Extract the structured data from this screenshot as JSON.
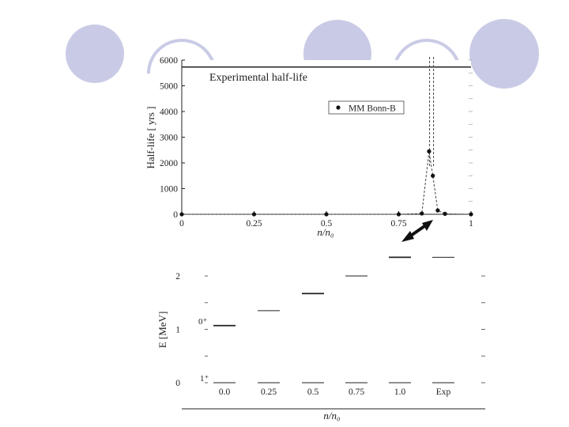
{
  "theme": {
    "circle_fill": "#c9cbe6",
    "ring_stroke": "#c9cbe6",
    "ink": "#222222",
    "grid": "#999999"
  },
  "chart_data": [
    {
      "type": "scatter",
      "xlabel": "n/n₀",
      "ylabel": "Half-life [ yrs ]",
      "xlim": [
        0,
        1
      ],
      "ylim": [
        0,
        6000
      ],
      "x_ticks": [
        "0",
        "0.25",
        "0.5",
        "0.75",
        "1"
      ],
      "y_ticks": [
        "0",
        "1000",
        "2000",
        "3000",
        "4000",
        "5000",
        "6000"
      ],
      "reference_line": {
        "label": "Experimental half-life",
        "y": 5730
      },
      "legend": {
        "label": "MM Bonn-B",
        "placement": "upper-right"
      },
      "series": [
        {
          "name": "MM Bonn-B",
          "points": [
            {
              "x": 0.0,
              "y": 0
            },
            {
              "x": 0.25,
              "y": 0
            },
            {
              "x": 0.5,
              "y": 0
            },
            {
              "x": 0.75,
              "y": 0
            },
            {
              "x": 0.83,
              "y": 30
            },
            {
              "x": 0.855,
              "y": 2450
            },
            {
              "x": 0.868,
              "y": 1500
            },
            {
              "x": 0.885,
              "y": 150
            },
            {
              "x": 0.91,
              "y": 20
            },
            {
              "x": 1.0,
              "y": 0
            }
          ]
        }
      ],
      "peak_x": 0.865
    },
    {
      "type": "level-diagram",
      "xlabel": "n/n₀",
      "ylabel": "E [MeV]",
      "ylim": [
        0,
        2
      ],
      "y_ticks": [
        "0",
        "1",
        "2"
      ],
      "categories": [
        "0.0",
        "0.25",
        "0.5",
        "0.75",
        "1.0",
        "Exp"
      ],
      "state_labels": [
        "0⁺",
        "1⁺"
      ],
      "series": [
        {
          "name": "0⁺",
          "values": [
            1.07,
            1.35,
            1.67,
            2.0,
            2.35,
            2.35
          ]
        },
        {
          "name": "1⁺",
          "values": [
            0,
            0,
            0,
            0,
            0,
            0
          ]
        }
      ]
    }
  ]
}
